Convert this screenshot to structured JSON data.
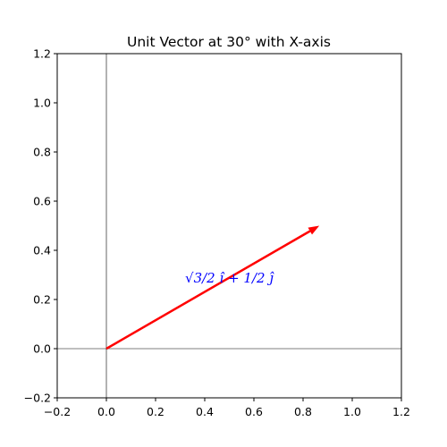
{
  "chart_data": {
    "type": "line",
    "title": "Unit Vector at 30° with X-axis",
    "xlabel": "",
    "ylabel": "",
    "xlim": [
      -0.2,
      1.2
    ],
    "ylim": [
      -0.2,
      1.2
    ],
    "x_ticks": [
      -0.2,
      0.0,
      0.2,
      0.4,
      0.6,
      0.8,
      1.0,
      1.2
    ],
    "x_tick_labels": [
      "−0.2",
      "0.0",
      "0.2",
      "0.4",
      "0.6",
      "0.8",
      "1.0",
      "1.2"
    ],
    "y_ticks": [
      -0.2,
      0.0,
      0.2,
      0.4,
      0.6,
      0.8,
      1.0,
      1.2
    ],
    "y_tick_labels": [
      "−0.2",
      "0.0",
      "0.2",
      "0.4",
      "0.6",
      "0.8",
      "1.0",
      "1.2"
    ],
    "grid": false,
    "reference_lines": {
      "x": 0,
      "y": 0
    },
    "vector": {
      "start": [
        0,
        0
      ],
      "end": [
        0.866,
        0.5
      ],
      "color": "#ff0000"
    },
    "annotation": {
      "x": 0.5,
      "y": 0.27,
      "text": "√3/2 î + 1/2 ĵ",
      "color": "#0000ff"
    }
  }
}
